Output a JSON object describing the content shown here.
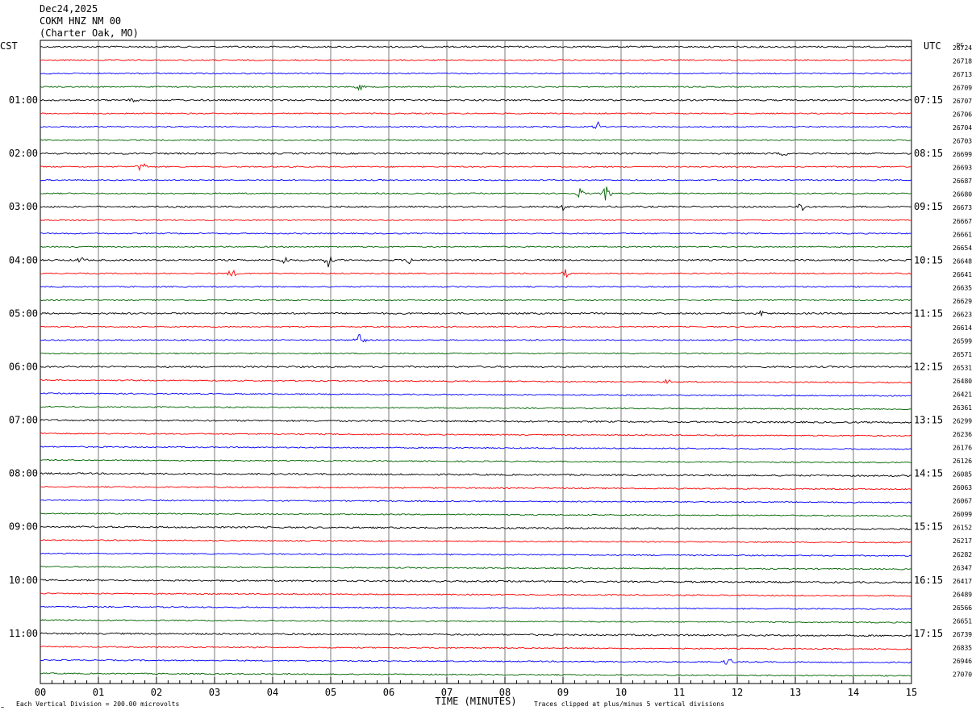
{
  "header": {
    "date": "Dec24,2025",
    "station": "COKM HNZ NM 00",
    "location": "(Charter Oak, MO)"
  },
  "footer": {
    "scale_note": "Each Vertical Division =  200.00 microvolts",
    "clip_note": "Traces clipped at plus/minus 5 vertical divisions",
    "corner_mark": "~"
  },
  "chart_data": {
    "type": "line",
    "title": "",
    "xlabel": "TIME (MINUTES)",
    "ylabel_left": "CST",
    "ylabel_right": "UTC",
    "dc_label": "DC",
    "xlim": [
      0,
      15
    ],
    "x_ticks": [
      "00",
      "01",
      "02",
      "03",
      "04",
      "05",
      "06",
      "07",
      "08",
      "09",
      "10",
      "11",
      "12",
      "13",
      "14",
      "15"
    ],
    "minor_tick_step_min": 0.2,
    "grid_vertical": true,
    "trace_colors": [
      "#000000",
      "#ff0000",
      "#0000ff",
      "#006400"
    ],
    "traces_per_hour": 4,
    "left_time_labels": [
      "01:00",
      "02:00",
      "03:00",
      "04:00",
      "05:00",
      "06:00",
      "07:00",
      "08:00",
      "09:00",
      "10:00",
      "11:00"
    ],
    "right_time_labels": [
      "07:15",
      "08:15",
      "09:15",
      "10:15",
      "11:15",
      "12:15",
      "13:15",
      "14:15",
      "15:15",
      "16:15",
      "17:15"
    ],
    "dc_offsets": [
      26724,
      26718,
      26713,
      26709,
      26707,
      26706,
      26704,
      26703,
      26699,
      26693,
      26687,
      26680,
      26673,
      26667,
      26661,
      26654,
      26648,
      26641,
      26635,
      26629,
      26623,
      26614,
      26599,
      26571,
      26531,
      26480,
      26421,
      26361,
      26299,
      26236,
      26176,
      26126,
      26085,
      26063,
      26067,
      26099,
      26152,
      26217,
      26282,
      26347,
      26417,
      26489,
      26566,
      26651,
      26739,
      26835,
      26946,
      27070
    ],
    "events": [
      {
        "trace": 2,
        "minute": 0.25,
        "amp": 3
      },
      {
        "trace": 3,
        "minute": 5.5,
        "amp": 5
      },
      {
        "trace": 4,
        "minute": 1.6,
        "amp": 3
      },
      {
        "trace": 6,
        "minute": 9.6,
        "amp": 7
      },
      {
        "trace": 8,
        "minute": 12.8,
        "amp": 4
      },
      {
        "trace": 9,
        "minute": 1.75,
        "amp": 12
      },
      {
        "trace": 11,
        "minute": 9.3,
        "amp": 8
      },
      {
        "trace": 11,
        "minute": 9.75,
        "amp": 14
      },
      {
        "trace": 12,
        "minute": 13.1,
        "amp": 10
      },
      {
        "trace": 12,
        "minute": 9.0,
        "amp": 5
      },
      {
        "trace": 16,
        "minute": 4.95,
        "amp": 10
      },
      {
        "trace": 16,
        "minute": 4.2,
        "amp": 7
      },
      {
        "trace": 16,
        "minute": 0.7,
        "amp": 5
      },
      {
        "trace": 16,
        "minute": 6.35,
        "amp": 6
      },
      {
        "trace": 17,
        "minute": 3.3,
        "amp": 8
      },
      {
        "trace": 17,
        "minute": 9.05,
        "amp": 6
      },
      {
        "trace": 20,
        "minute": 12.4,
        "amp": 4
      },
      {
        "trace": 22,
        "minute": 5.5,
        "amp": 18
      },
      {
        "trace": 25,
        "minute": 10.8,
        "amp": 4
      },
      {
        "trace": 46,
        "minute": 11.85,
        "amp": 10
      }
    ]
  }
}
